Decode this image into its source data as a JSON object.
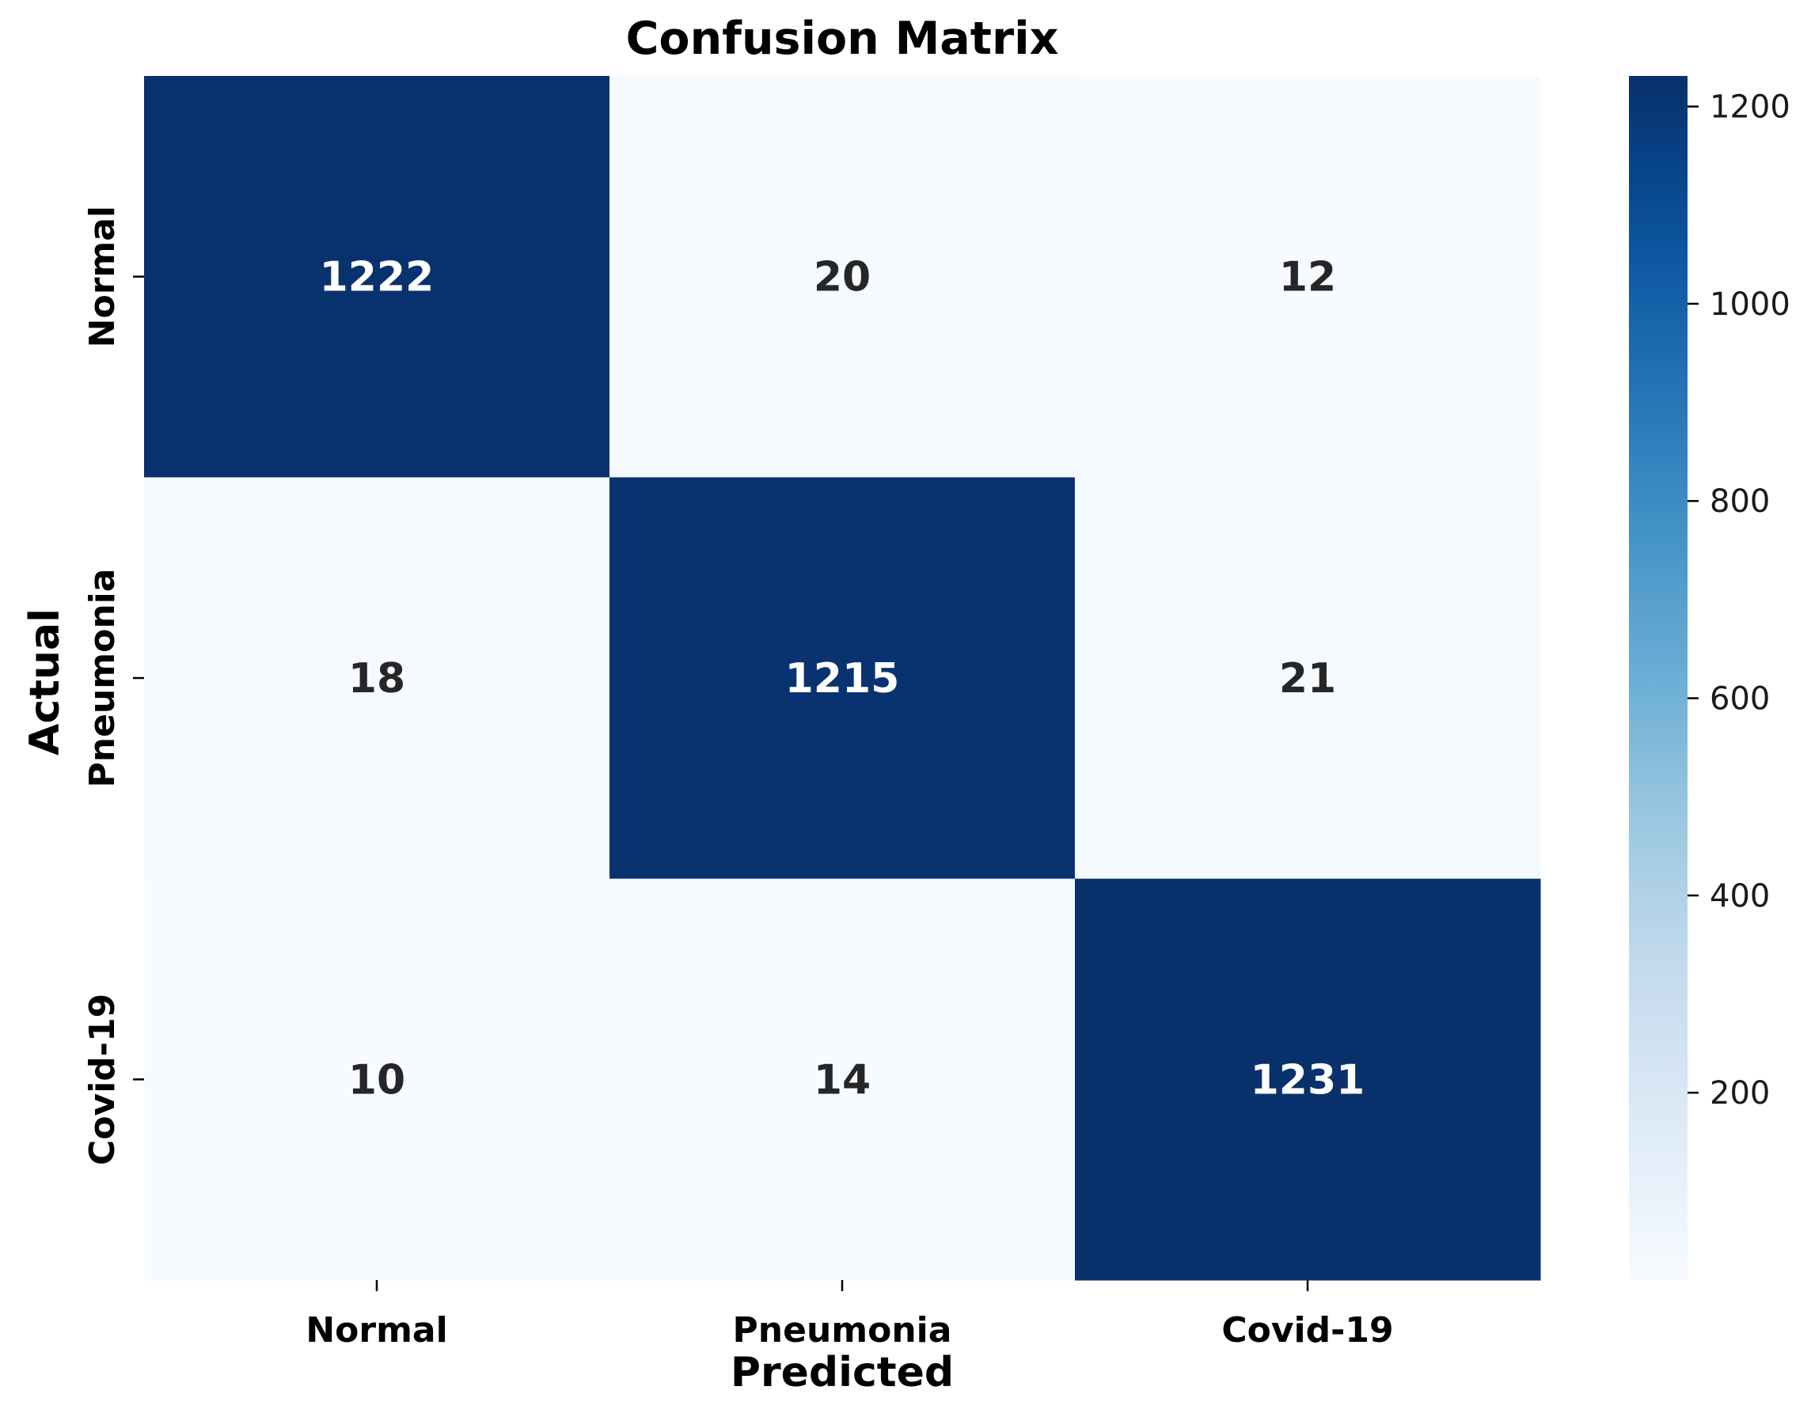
{
  "chart_data": {
    "type": "heatmap",
    "title": "Confusion Matrix",
    "xlabel": "Predicted",
    "ylabel": "Actual",
    "x_categories": [
      "Normal",
      "Pneumonia",
      "Covid-19"
    ],
    "y_categories": [
      "Normal",
      "Pneumonia",
      "Covid-19"
    ],
    "values": [
      [
        1222,
        20,
        12
      ],
      [
        18,
        1215,
        21
      ],
      [
        10,
        14,
        1231
      ]
    ],
    "colormap": "Blues",
    "colorbar": {
      "range": [
        10,
        1231
      ],
      "ticks": [
        200,
        400,
        600,
        800,
        1000,
        1200
      ]
    },
    "colors": {
      "low": "#f7fbff",
      "high": "#08306b",
      "text_dark": "#262626",
      "text_light": "#ffffff"
    }
  }
}
